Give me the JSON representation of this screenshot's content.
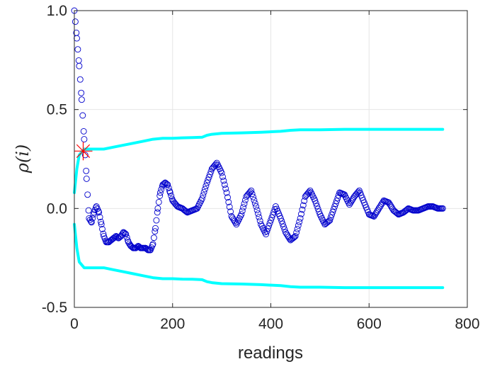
{
  "chart_data": {
    "type": "scatter",
    "title": "",
    "xlabel": "readings",
    "ylabel": "ρ(i)",
    "xlim": [
      0,
      800
    ],
    "ylim": [
      -0.5,
      1.0
    ],
    "grid": true,
    "legend": "none",
    "x_ticks": [
      "0",
      "200",
      "400",
      "600",
      "800"
    ],
    "y_ticks": [
      "-0.5",
      "0.0",
      "0.5",
      "1.0"
    ],
    "colors": {
      "autocorrelation": "#0000cc",
      "confidence_bounds": "#00ffff",
      "cutoff_marker": "#ff0000",
      "axes": "#262626",
      "grid": "#e6e6e6"
    },
    "series": [
      {
        "kind": "markers",
        "x": [
          0,
          5,
          10,
          15,
          20,
          25,
          30,
          35,
          40,
          45,
          50,
          55,
          60,
          65,
          70,
          75,
          80,
          85,
          90,
          95,
          100,
          105,
          110,
          115,
          120,
          125,
          130,
          135,
          140,
          145,
          150,
          155,
          160,
          165,
          170,
          175,
          180,
          185,
          190,
          195,
          200,
          210,
          220,
          230,
          240,
          250,
          260,
          270,
          280,
          290,
          300,
          310,
          320,
          330,
          340,
          350,
          360,
          370,
          380,
          390,
          400,
          410,
          420,
          430,
          440,
          450,
          460,
          470,
          480,
          490,
          500,
          510,
          520,
          530,
          540,
          550,
          560,
          570,
          580,
          590,
          600,
          610,
          620,
          630,
          640,
          650,
          660,
          670,
          680,
          690,
          700,
          710,
          720,
          730,
          740,
          750
        ],
        "values": [
          1.0,
          0.86,
          0.72,
          0.55,
          0.35,
          0.15,
          -0.05,
          -0.07,
          -0.02,
          0.01,
          -0.02,
          -0.08,
          -0.14,
          -0.17,
          -0.17,
          -0.16,
          -0.15,
          -0.14,
          -0.15,
          -0.14,
          -0.12,
          -0.13,
          -0.17,
          -0.19,
          -0.2,
          -0.2,
          -0.19,
          -0.2,
          -0.2,
          -0.2,
          -0.21,
          -0.21,
          -0.18,
          -0.1,
          0.0,
          0.08,
          0.12,
          0.13,
          0.12,
          0.08,
          0.04,
          0.01,
          0.0,
          -0.02,
          -0.01,
          0.0,
          0.05,
          0.13,
          0.2,
          0.23,
          0.18,
          0.08,
          -0.04,
          -0.08,
          -0.03,
          0.06,
          0.09,
          0.01,
          -0.08,
          -0.13,
          -0.06,
          0.01,
          -0.05,
          -0.12,
          -0.16,
          -0.14,
          -0.05,
          0.06,
          0.09,
          0.04,
          -0.03,
          -0.08,
          -0.06,
          0.01,
          0.08,
          0.07,
          0.02,
          0.06,
          0.09,
          0.03,
          -0.03,
          -0.04,
          0.0,
          0.04,
          0.03,
          -0.01,
          -0.03,
          -0.02,
          0.0,
          -0.01,
          -0.01,
          0.0,
          0.01,
          0.01,
          0.0,
          0.0
        ]
      },
      {
        "kind": "line",
        "x": [
          0,
          5,
          10,
          20,
          40,
          60,
          80,
          100,
          120,
          140,
          160,
          180,
          200,
          220,
          240,
          260,
          270,
          280,
          300,
          340,
          380,
          420,
          440,
          460,
          500,
          550,
          600,
          650,
          700,
          750
        ],
        "upper": [
          0.08,
          0.2,
          0.27,
          0.3,
          0.3,
          0.3,
          0.31,
          0.32,
          0.33,
          0.34,
          0.35,
          0.355,
          0.355,
          0.357,
          0.358,
          0.36,
          0.37,
          0.375,
          0.38,
          0.382,
          0.385,
          0.39,
          0.395,
          0.398,
          0.398,
          0.4,
          0.4,
          0.4,
          0.4,
          0.4
        ],
        "lower": [
          -0.08,
          -0.2,
          -0.27,
          -0.3,
          -0.3,
          -0.3,
          -0.31,
          -0.32,
          -0.33,
          -0.34,
          -0.35,
          -0.355,
          -0.355,
          -0.357,
          -0.358,
          -0.36,
          -0.37,
          -0.375,
          -0.38,
          -0.382,
          -0.385,
          -0.39,
          -0.395,
          -0.398,
          -0.398,
          -0.4,
          -0.4,
          -0.4,
          -0.4,
          -0.4
        ]
      }
    ],
    "annotations": [
      {
        "kind": "cross-marker",
        "x": 18,
        "y": 0.29
      }
    ]
  }
}
